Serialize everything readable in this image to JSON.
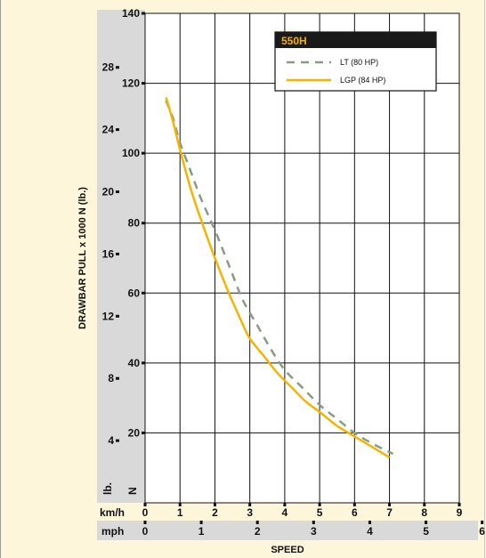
{
  "chart_data": {
    "type": "line",
    "title": "",
    "xlabel": "SPEED",
    "ylabel": "DRAWBAR PULL x 1000 N (lb.)",
    "x_unit_primary": "km/h",
    "x_unit_secondary": "mph",
    "y_unit_primary": "N",
    "y_unit_secondary": "lb.",
    "xlim": [
      0,
      9
    ],
    "ylim": [
      0,
      140
    ],
    "x_ticks_kmh": [
      "0",
      "1",
      "2",
      "3",
      "4",
      "5",
      "6",
      "7",
      "8",
      "9"
    ],
    "x_ticks_mph": [
      "0",
      "1",
      "2",
      "3",
      "4",
      "5",
      "6"
    ],
    "y_ticks_n": [
      "20",
      "40",
      "60",
      "80",
      "100",
      "120",
      "140"
    ],
    "y_ticks_lb": [
      "4",
      "8",
      "12",
      "16",
      "20",
      "24",
      "28"
    ],
    "grid": true,
    "legend": {
      "title": "550H",
      "placement": "top-right",
      "entries": [
        "LT (80 HP)",
        "LGP (84 HP)"
      ]
    },
    "series": [
      {
        "name": "LT (80 HP)",
        "style": "dashed",
        "color": "#8a9a86",
        "x": [
          0.6,
          0.8,
          1.0,
          1.3,
          1.6,
          2.0,
          2.4,
          2.8,
          3.2,
          3.6,
          4.0,
          4.5,
          5.0,
          5.5,
          6.0,
          6.5,
          7.1
        ],
        "y": [
          115,
          110,
          103,
          95,
          87,
          78,
          68,
          58,
          51,
          44,
          38,
          33,
          28,
          24,
          20,
          17,
          14
        ]
      },
      {
        "name": "LGP (84 HP)",
        "style": "solid",
        "color": "#f5b400",
        "x": [
          0.6,
          0.8,
          1.0,
          1.3,
          1.6,
          2.0,
          2.4,
          2.8,
          3.0,
          3.4,
          3.8,
          4.2,
          4.6,
          5.0,
          5.5,
          6.0,
          6.5,
          7.0
        ],
        "y": [
          116,
          109,
          101,
          90,
          81,
          70,
          60,
          51,
          47,
          42,
          37,
          33,
          29,
          26,
          22,
          19,
          16,
          13
        ]
      }
    ]
  },
  "colors": {
    "background": "#fdf6db",
    "axis_band": "#d9d9d9",
    "plot_bg": "#ffffff",
    "legend_header": "#1a1a1a"
  }
}
